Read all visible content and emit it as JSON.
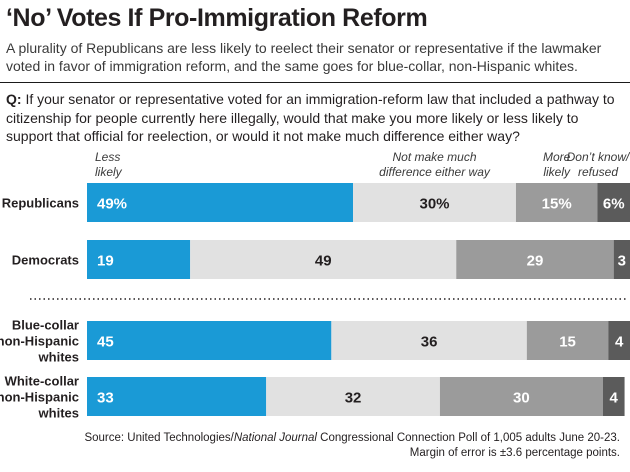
{
  "title": "‘No’ Votes If Pro-Immigration Reform",
  "subtitle": "A plurality of Republicans are less likely to reelect their senator or representative if the lawmaker voted in favor of immigration reform, and the same goes for blue-collar, non-Hispanic whites.",
  "question": {
    "prefix": "Q:",
    "text": "If your senator or representative voted for an immigration-reform law that included a pathway to citizenship for people currently here illegally, would that make you more likely or less likely to support that official for reelection, or would it not make much difference either way?"
  },
  "source": {
    "prefix": "Source: United Technologies/",
    "publication": "National Journal",
    "suffix": " Congressional Connection Poll of 1,005 adults June 20-23.",
    "line2": "Margin of error is ±3.6 percentage points."
  },
  "colors": {
    "less_likely": "#1a9ad6",
    "no_difference": "#e1e1e1",
    "more_likely": "#9b9b9b",
    "dont_know": "#5b5b5b"
  },
  "chart_data": {
    "type": "bar",
    "orientation": "horizontal",
    "stacked": true,
    "percent_scale": [
      0,
      100
    ],
    "categories": [
      [
        "Republicans"
      ],
      [
        "Democrats"
      ],
      [
        "Blue-collar",
        "non-Hispanic",
        "whites"
      ],
      [
        "White-collar",
        "non-Hispanic",
        "whites"
      ]
    ],
    "series": [
      {
        "name": "Less likely",
        "header": [
          "Less",
          "likely"
        ],
        "values": [
          49,
          19,
          45,
          33
        ],
        "labels": [
          "49%",
          "19",
          "45",
          "33"
        ]
      },
      {
        "name": "Not make much difference either way",
        "header": [
          "Not make much",
          "difference either way"
        ],
        "values": [
          30,
          49,
          36,
          32
        ],
        "labels": [
          "30%",
          "49",
          "36",
          "32"
        ]
      },
      {
        "name": "More likely",
        "header": [
          "More",
          "likely"
        ],
        "values": [
          15,
          29,
          15,
          30
        ],
        "labels": [
          "15%",
          "29",
          "15",
          "30"
        ]
      },
      {
        "name": "Don't know/refused",
        "header": [
          "Don’t know/",
          "refused"
        ],
        "values": [
          6,
          3,
          4,
          4
        ],
        "labels": [
          "6%",
          "3",
          "4",
          "4"
        ]
      }
    ],
    "group_separator_after": 1
  }
}
